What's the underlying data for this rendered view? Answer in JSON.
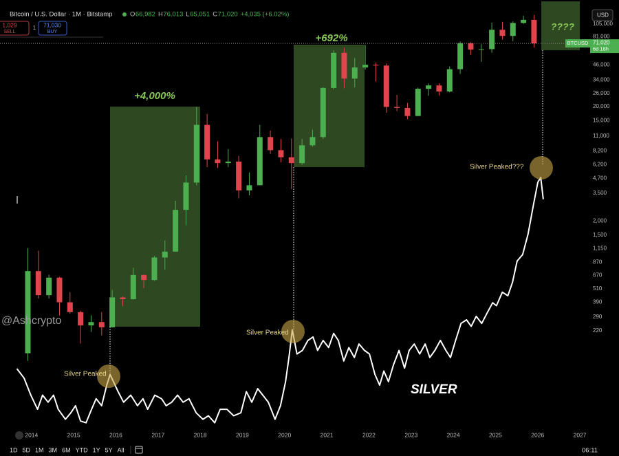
{
  "header": {
    "title": "Bitcoin / U.S. Dollar · 1M · Bitstamp",
    "ohlc": [
      [
        "O",
        "66,982"
      ],
      [
        "H",
        "76,013"
      ],
      [
        "L",
        "65,051"
      ],
      [
        "C",
        "71,020"
      ]
    ],
    "change": "+4,035 (+6.02%)",
    "sell_price": "1,029",
    "sell": "SELL",
    "spread": "1",
    "buy_price": "71,030",
    "buy": "BUY",
    "currency": "USD"
  },
  "price_label": {
    "price": "71,020",
    "countdown": "6d 18h"
  },
  "watermark": "@Ashcrypto",
  "toolbar": {
    "ranges": [
      "1D",
      "5D",
      "1M",
      "3M",
      "6M",
      "YTD",
      "1Y",
      "5Y",
      "All"
    ],
    "time": "06:11"
  },
  "chart_data": {
    "type": "candlestick",
    "log_y": true,
    "grid": false,
    "xlim": [
      2013.09,
      2027.08
    ],
    "xticks": [
      2014,
      2015,
      2016,
      2017,
      2018,
      2019,
      2020,
      2021,
      2022,
      2023,
      2024,
      2025,
      2026,
      2027
    ],
    "ylim": [
      30,
      148000
    ],
    "yticks": [
      {
        "value": 105000,
        "label": "105,000"
      },
      {
        "value": 81000,
        "label": "81,000"
      },
      {
        "value": 46000,
        "label": "46,000"
      },
      {
        "value": 34000,
        "label": "34,000"
      },
      {
        "value": 26000,
        "label": "26,000"
      },
      {
        "value": 20000,
        "label": "20,000"
      },
      {
        "value": 15000,
        "label": "15,000"
      },
      {
        "value": 11000,
        "label": "11,000"
      },
      {
        "value": 8200,
        "label": "8,200"
      },
      {
        "value": 6200,
        "label": "6,200"
      },
      {
        "value": 4700,
        "label": "4,700"
      },
      {
        "value": 3500,
        "label": "3,500"
      },
      {
        "value": 2000,
        "label": "2,000"
      },
      {
        "value": 1500,
        "label": "1,500"
      },
      {
        "value": 1150,
        "label": "1,150"
      },
      870,
      670,
      510,
      390,
      290,
      220
    ],
    "y2lim": [
      10.8,
      82.7
    ],
    "series": [
      {
        "name": "BTCUSD",
        "type": "candlestick",
        "up_color": "#4caf50",
        "down_color": "#e0454d",
        "x": [
          2013.75,
          2014,
          2014.25,
          2014.5,
          2014.75,
          2015,
          2015.25,
          2015.5,
          2015.75,
          2016,
          2016.25,
          2016.5,
          2016.75,
          2017,
          2017.25,
          2017.5,
          2017.75,
          2018,
          2018.25,
          2018.5,
          2018.75,
          2019,
          2019.25,
          2019.5,
          2019.75,
          2020,
          2020.25,
          2020.5,
          2020.75,
          2021,
          2021.25,
          2021.5,
          2021.75,
          2022,
          2022.25,
          2022.5,
          2022.75,
          2023,
          2023.25,
          2023.5,
          2023.75,
          2024,
          2024.25,
          2024.5,
          2024.75,
          2025,
          2025.25,
          2025.5,
          2025.75
        ],
        "open": [
          140,
          730,
          450,
          640,
          390,
          320,
          245,
          262,
          236,
          430,
          415,
          675,
          610,
          960,
          1080,
          2500,
          4330,
          13800,
          6900,
          6400,
          6600,
          3700,
          4100,
          10800,
          8300,
          7200,
          6400,
          9150,
          10800,
          29000,
          58800,
          35000,
          43800,
          46200,
          45500,
          19800,
          19400,
          16500,
          28500,
          30500,
          27000,
          42300,
          71300,
          62700,
          63300,
          93400,
          82500,
          107100,
          114000
        ],
        "high": [
          1160,
          1100,
          680,
          650,
          480,
          330,
          300,
          320,
          500,
          440,
          780,
          680,
          990,
          1350,
          3000,
          5000,
          19800,
          17200,
          9900,
          8500,
          7400,
          5300,
          13800,
          12300,
          10400,
          10500,
          10400,
          12500,
          29300,
          61800,
          64800,
          52900,
          69000,
          48200,
          47400,
          25200,
          21500,
          29200,
          31800,
          31800,
          44700,
          73800,
          72800,
          70000,
          108000,
          109500,
          110500,
          124000,
          126000
        ],
        "low": [
          120,
          420,
          420,
          300,
          310,
          170,
          215,
          200,
          235,
          360,
          410,
          520,
          600,
          750,
          1080,
          1830,
          4100,
          5900,
          5800,
          5900,
          3150,
          3350,
          4100,
          7700,
          6500,
          3800,
          6200,
          8900,
          10400,
          28100,
          28800,
          29300,
          42000,
          33000,
          17600,
          18200,
          15500,
          16500,
          24800,
          24900,
          26500,
          38500,
          56500,
          49000,
          58900,
          76600,
          74400,
          105300,
          65051
        ],
        "close": [
          730,
          450,
          640,
          390,
          320,
          245,
          262,
          236,
          430,
          415,
          675,
          610,
          960,
          1080,
          2500,
          4330,
          13800,
          6900,
          6400,
          6600,
          3700,
          4100,
          10800,
          8300,
          7200,
          6400,
          9150,
          10800,
          29000,
          58800,
          35000,
          43800,
          46200,
          45500,
          19800,
          19400,
          16500,
          28500,
          30500,
          27000,
          42300,
          71300,
          62700,
          63300,
          93400,
          82500,
          107100,
          114000,
          71020
        ]
      },
      {
        "name": "SILVER",
        "type": "line",
        "axis": "y2",
        "color": "#ffffff",
        "x": [
          2013.49,
          2013.66,
          2013.82,
          2013.98,
          2014.1,
          2014.23,
          2014.36,
          2014.47,
          2014.64,
          2014.77,
          2014.88,
          2015.0,
          2015.13,
          2015.26,
          2015.37,
          2015.5,
          2015.62,
          2015.7,
          2015.78,
          2015.89,
          2016.02,
          2016.19,
          2016.35,
          2016.48,
          2016.59,
          2016.76,
          2016.92,
          2017.03,
          2017.16,
          2017.3,
          2017.43,
          2017.57,
          2017.74,
          2017.9,
          2018.03,
          2018.18,
          2018.31,
          2018.47,
          2018.63,
          2018.8,
          2018.93,
          2019.06,
          2019.2,
          2019.32,
          2019.45,
          2019.61,
          2019.74,
          2019.86,
          2019.94,
          2020.02,
          2020.13,
          2020.26,
          2020.39,
          2020.51,
          2020.62,
          2020.75,
          2020.88,
          2021.0,
          2021.11,
          2021.24,
          2021.36,
          2021.49,
          2021.6,
          2021.73,
          2021.85,
          2021.98,
          2022.09,
          2022.19,
          2022.3,
          2022.42,
          2022.55,
          2022.68,
          2022.79,
          2022.91,
          2023.04,
          2023.17,
          2023.28,
          2023.4,
          2023.53,
          2023.66,
          2023.77,
          2023.89,
          2024.02,
          2024.15,
          2024.26,
          2024.38,
          2024.51,
          2024.64,
          2024.77,
          2024.86,
          2025.0,
          2025.13,
          2025.24,
          2025.35,
          2025.48,
          2025.61,
          2025.73,
          2025.84,
          2025.91,
          2025.97
        ],
        "values": [
          21.2,
          19.6,
          16.7,
          14.3,
          16.7,
          15.5,
          16.7,
          14.3,
          12.6,
          13.7,
          14.9,
          12.3,
          12.0,
          14.3,
          16.1,
          14.9,
          18.4,
          20.2,
          19.0,
          17.3,
          15.5,
          16.7,
          14.9,
          16.1,
          14.3,
          16.7,
          16.1,
          14.9,
          15.5,
          16.7,
          15.5,
          16.1,
          13.7,
          12.6,
          13.2,
          12.0,
          14.3,
          14.3,
          13.2,
          13.7,
          17.3,
          15.5,
          17.8,
          16.7,
          15.5,
          12.6,
          14.9,
          19.0,
          23.1,
          27.8,
          23.7,
          24.3,
          26.0,
          26.6,
          24.3,
          26.0,
          24.8,
          27.2,
          26.0,
          22.5,
          24.8,
          23.1,
          25.4,
          24.3,
          23.7,
          20.2,
          18.4,
          20.8,
          19.0,
          21.9,
          24.3,
          21.3,
          24.3,
          25.4,
          23.7,
          25.4,
          23.1,
          24.3,
          26.0,
          24.3,
          23.1,
          26.0,
          28.9,
          29.5,
          28.4,
          30.1,
          28.9,
          30.7,
          32.4,
          31.9,
          34.2,
          33.6,
          35.9,
          39.5,
          40.6,
          44.1,
          48.8,
          52.9,
          53.7,
          50.0
        ]
      }
    ],
    "annotations": [
      "+4,000%",
      "+692%",
      "????",
      "Silver Peaked",
      "Silver Peaked",
      "Silver Peaked???"
    ]
  }
}
